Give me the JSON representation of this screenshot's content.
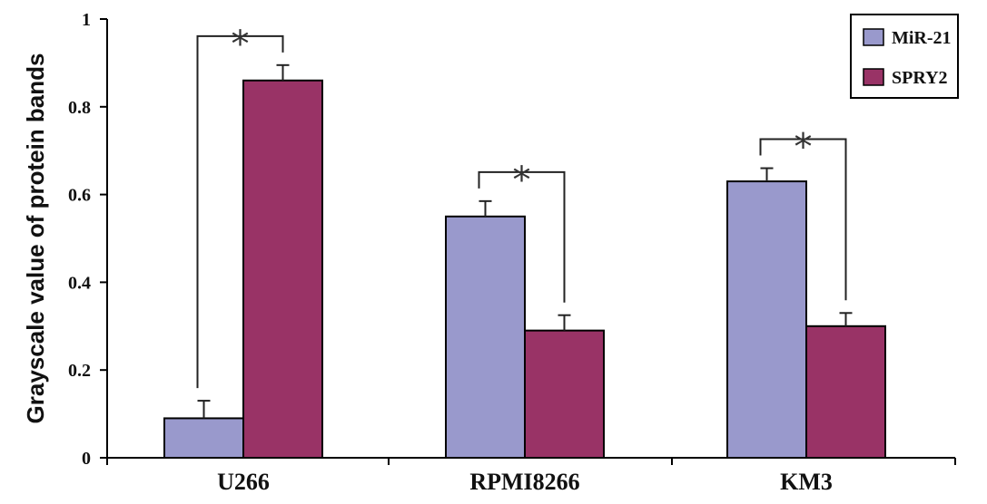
{
  "chart_data": {
    "type": "bar",
    "title": "",
    "xlabel": "",
    "ylabel": "Grayscale value of protein bands",
    "ylim": [
      0,
      1
    ],
    "yticks": [
      0,
      0.2,
      0.4,
      0.6,
      0.8,
      1
    ],
    "ytick_labels": [
      "0",
      "0.2",
      "0.4",
      "0.6",
      "0.8",
      "1"
    ],
    "categories": [
      "U266",
      "RPMI8266",
      "KM3"
    ],
    "series": [
      {
        "name": "MiR-21",
        "color": "#9999cc",
        "values": [
          0.09,
          0.55,
          0.63
        ],
        "errors": [
          0.04,
          0.035,
          0.03
        ]
      },
      {
        "name": "SPRY2",
        "color": "#993366",
        "values": [
          0.86,
          0.29,
          0.3
        ],
        "errors": [
          0.035,
          0.035,
          0.03
        ]
      }
    ],
    "legend_position": "top-right",
    "grid": false,
    "annotations": [
      {
        "category": "U266",
        "text": "*"
      },
      {
        "category": "RPMI8266",
        "text": "*"
      },
      {
        "category": "KM3",
        "text": "*"
      }
    ]
  }
}
